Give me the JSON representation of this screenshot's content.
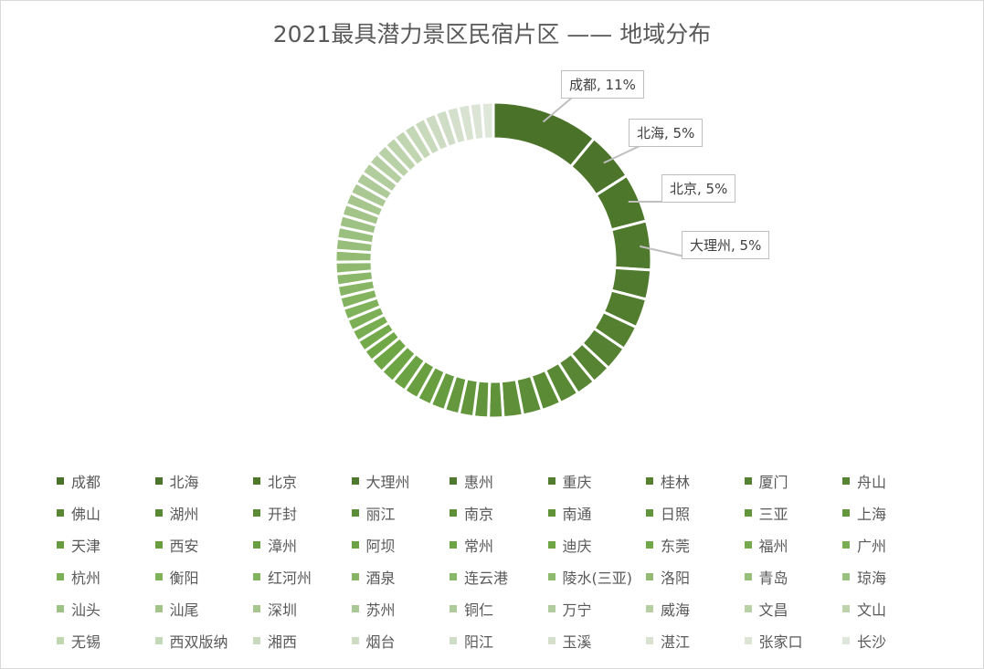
{
  "chart_data": {
    "type": "pie",
    "variant": "donut",
    "title": "2021最具潜力景区民宿片区 —— 地域分布",
    "legend_position": "bottom",
    "categories": [
      "成都",
      "北海",
      "北京",
      "大理州",
      "惠州",
      "重庆",
      "桂林",
      "厦门",
      "舟山",
      "佛山",
      "湖州",
      "开封",
      "丽江",
      "南京",
      "南通",
      "日照",
      "三亚",
      "上海",
      "天津",
      "西安",
      "漳州",
      "阿坝",
      "常州",
      "迪庆",
      "东莞",
      "福州",
      "广州",
      "杭州",
      "衡阳",
      "红河州",
      "酒泉",
      "连云港",
      "陵水(三亚)",
      "洛阳",
      "青岛",
      "琼海",
      "汕头",
      "汕尾",
      "深圳",
      "苏州",
      "铜仁",
      "万宁",
      "威海",
      "文昌",
      "文山",
      "无锡",
      "西双版纳",
      "湘西",
      "烟台",
      "阳江",
      "玉溪",
      "湛江",
      "张家口",
      "长沙"
    ],
    "values": [
      11,
      5,
      5,
      5,
      3,
      3,
      2.5,
      2.5,
      2,
      2,
      2,
      2,
      2,
      2,
      1.5,
      1.5,
      1.5,
      1.5,
      1.5,
      1.5,
      1.5,
      1.5,
      1.5,
      1.5,
      1.2,
      1.2,
      1.2,
      1.2,
      1.2,
      1.2,
      1.2,
      1.2,
      1.2,
      1.2,
      1.2,
      1.2,
      1.2,
      1.2,
      1.2,
      1.2,
      1.2,
      1.2,
      1.2,
      1.2,
      1.2,
      1.2,
      1.2,
      1.2,
      1.2,
      1.2,
      1.2,
      1.2,
      1.2,
      1.2
    ],
    "unit": "%",
    "data_labels": [
      {
        "text": "成都, 11%",
        "index": 0
      },
      {
        "text": "北海, 5%",
        "index": 1
      },
      {
        "text": "北京, 5%",
        "index": 2
      },
      {
        "text": "大理州, 5%",
        "index": 3
      }
    ],
    "colors": {
      "darkest": "#4a7229",
      "lightest": "#dfe6da"
    }
  }
}
